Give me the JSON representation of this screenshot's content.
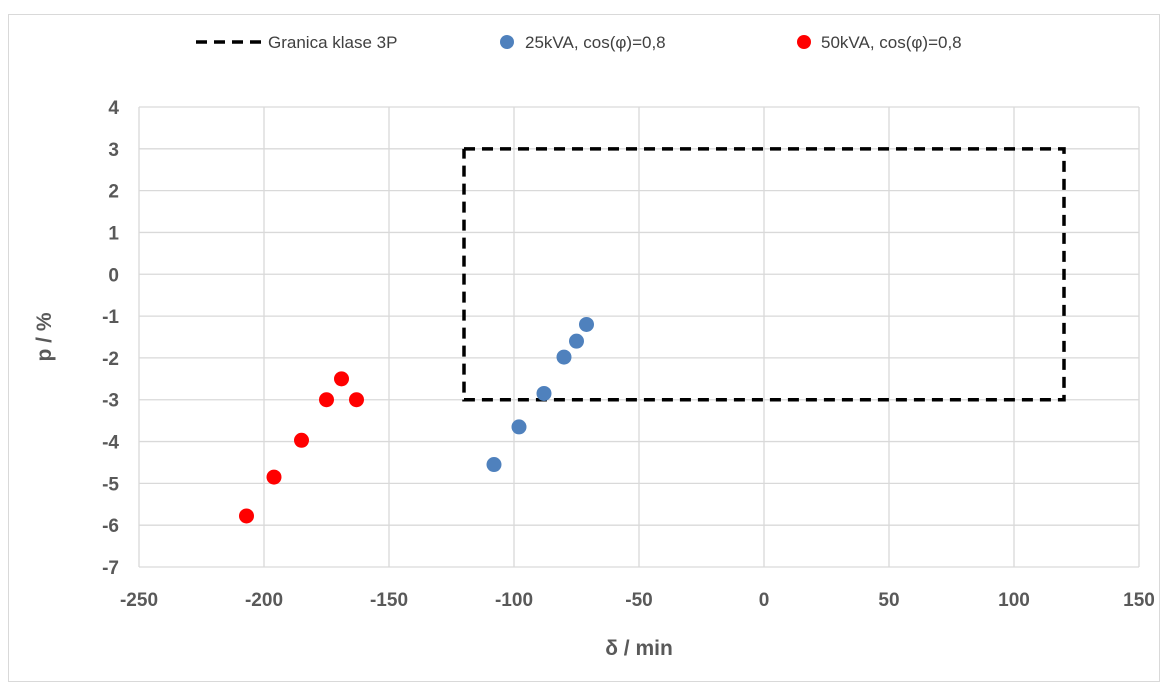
{
  "chart_data": {
    "type": "scatter",
    "xlabel": "δ / min",
    "ylabel": "p / %",
    "xlim": [
      -250,
      150
    ],
    "ylim": [
      -7,
      4
    ],
    "x_ticks": [
      -250,
      -200,
      -150,
      -100,
      -50,
      0,
      50,
      100,
      150
    ],
    "y_ticks": [
      4,
      3,
      2,
      1,
      0,
      -1,
      -2,
      -3,
      -4,
      -5,
      -6,
      -7
    ],
    "grid": true,
    "legend_position": "top",
    "boundary": {
      "name": "Granica klase 3P",
      "style": "dashed",
      "color": "#000000",
      "points": [
        [
          -120,
          3
        ],
        [
          120,
          3
        ],
        [
          120,
          -3
        ],
        [
          -120,
          -3
        ],
        [
          -120,
          3
        ]
      ]
    },
    "series": [
      {
        "name": "25kVA, cos(φ)=0,8",
        "color": "#4f81bd",
        "points": [
          [
            -108,
            -4.55
          ],
          [
            -98,
            -3.65
          ],
          [
            -88,
            -2.85
          ],
          [
            -80,
            -1.98
          ],
          [
            -75,
            -1.6
          ],
          [
            -71,
            -1.2
          ]
        ]
      },
      {
        "name": "50kVA, cos(φ)=0,8",
        "color": "#ff0000",
        "points": [
          [
            -207,
            -5.78
          ],
          [
            -196,
            -4.85
          ],
          [
            -185,
            -3.97
          ],
          [
            -175,
            -3.0
          ],
          [
            -169,
            -2.5
          ],
          [
            -163,
            -3.0
          ]
        ]
      }
    ]
  }
}
